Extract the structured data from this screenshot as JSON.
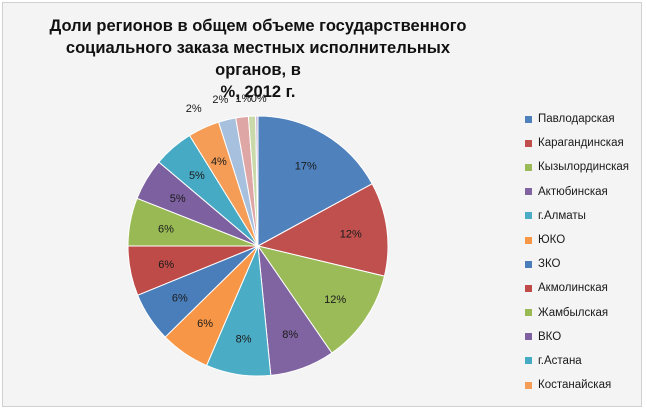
{
  "chart_data": {
    "type": "pie",
    "title": "Доли регионов в общем объеме  государственного социального заказа местных исполнительных органов, в %, 2012 г.",
    "title_lines": [
      "Доли регионов в общем объеме  государственного",
      "социального заказа местных исполнительных органов, в",
      "%, 2012 г."
    ],
    "slices": [
      {
        "name": "Павлодарская",
        "value": 17.4,
        "label": "17%",
        "color": "#4f81bd"
      },
      {
        "name": "Карагандинская",
        "value": 11.9,
        "label": "12%",
        "color": "#c0504d"
      },
      {
        "name": "Кызылординская",
        "value": 11.9,
        "label": "12%",
        "color": "#9bbb59"
      },
      {
        "name": "Актюбинская",
        "value": 8.2,
        "label": "8%",
        "color": "#8064a2"
      },
      {
        "name": "г.Алматы",
        "value": 8.2,
        "label": "8%",
        "color": "#4bacc6"
      },
      {
        "name": "ЮКО",
        "value": 6.3,
        "label": "6%",
        "color": "#f79646"
      },
      {
        "name": "ЗКО",
        "value": 6.3,
        "label": "6%",
        "color": "#4a7ebb"
      },
      {
        "name": "Акмолинская",
        "value": 6.3,
        "label": "6%",
        "color": "#be4b48"
      },
      {
        "name": "Жамбылская",
        "value": 6.1,
        "label": "6%",
        "color": "#98b954"
      },
      {
        "name": "ВКО",
        "value": 5.3,
        "label": "5%",
        "color": "#7d60a0"
      },
      {
        "name": "г.Астана",
        "value": 5.1,
        "label": "5%",
        "color": "#46aac5"
      },
      {
        "name": "Костанайская",
        "value": 4.0,
        "label": "4%",
        "color": "#f59d56"
      },
      {
        "name": "",
        "value": 2.2,
        "label": "2%",
        "color": "#a7c0de"
      },
      {
        "name": "",
        "value": 1.6,
        "label": "2%",
        "color": "#dea7a6"
      },
      {
        "name": "",
        "value": 0.9,
        "label": "1%",
        "color": "#c9d9a9"
      },
      {
        "name": "",
        "value": 0.3,
        "label": "0%",
        "color": "#c4b6d6"
      }
    ],
    "legend_position": "right",
    "start_angle": "12 o'clock",
    "direction": "clockwise"
  }
}
